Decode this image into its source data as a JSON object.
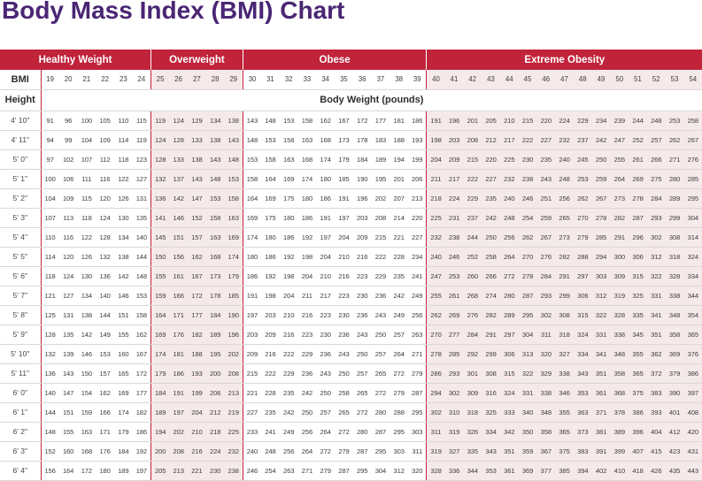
{
  "title": "Body Mass Index (BMI) Chart",
  "colors": {
    "title": "#4a2674",
    "category_header": "#c0233a",
    "shaded": "#f6e9ea"
  },
  "categories": [
    {
      "label": "Healthy Weight",
      "span": 6
    },
    {
      "label": "Overweight",
      "span": 5
    },
    {
      "label": "Obese",
      "span": 10
    },
    {
      "label": "Extreme Obesity",
      "span": 15
    }
  ],
  "bmi_label": "BMI",
  "height_label": "Height",
  "body_weight_label": "Body Weight (pounds)",
  "bmi_values": [
    "19",
    "20",
    "21",
    "22",
    "23",
    "24",
    "25",
    "26",
    "27",
    "28",
    "29",
    "30",
    "31",
    "32",
    "33",
    "34",
    "35",
    "36",
    "37",
    "38",
    "39",
    "40",
    "41",
    "42",
    "43",
    "44",
    "45",
    "46",
    "47",
    "48",
    "49",
    "50",
    "51",
    "52",
    "53",
    "54"
  ],
  "rows": [
    {
      "height": "4' 10\"",
      "weights": [
        "91",
        "96",
        "100",
        "105",
        "110",
        "115",
        "119",
        "124",
        "129",
        "134",
        "138",
        "143",
        "148",
        "153",
        "158",
        "162",
        "167",
        "172",
        "177",
        "181",
        "186",
        "191",
        "196",
        "201",
        "205",
        "210",
        "215",
        "220",
        "224",
        "229",
        "234",
        "239",
        "244",
        "248",
        "253",
        "258"
      ]
    },
    {
      "height": "4' 11\"",
      "weights": [
        "94",
        "99",
        "104",
        "109",
        "114",
        "119",
        "124",
        "128",
        "133",
        "138",
        "143",
        "148",
        "153",
        "158",
        "163",
        "168",
        "173",
        "178",
        "183",
        "188",
        "193",
        "198",
        "203",
        "208",
        "212",
        "217",
        "222",
        "227",
        "232",
        "237",
        "242",
        "247",
        "252",
        "257",
        "262",
        "267"
      ]
    },
    {
      "height": "5' 0\"",
      "weights": [
        "97",
        "102",
        "107",
        "112",
        "118",
        "123",
        "128",
        "133",
        "138",
        "143",
        "148",
        "153",
        "158",
        "163",
        "168",
        "174",
        "179",
        "184",
        "189",
        "194",
        "199",
        "204",
        "209",
        "215",
        "220",
        "225",
        "230",
        "235",
        "240",
        "245",
        "250",
        "255",
        "261",
        "266",
        "271",
        "276"
      ]
    },
    {
      "height": "5' 1\"",
      "weights": [
        "100",
        "106",
        "111",
        "116",
        "122",
        "127",
        "132",
        "137",
        "143",
        "148",
        "153",
        "158",
        "164",
        "169",
        "174",
        "180",
        "185",
        "190",
        "195",
        "201",
        "206",
        "211",
        "217",
        "222",
        "227",
        "232",
        "238",
        "243",
        "248",
        "253",
        "259",
        "264",
        "269",
        "275",
        "280",
        "285"
      ]
    },
    {
      "height": "5' 2\"",
      "weights": [
        "104",
        "109",
        "115",
        "120",
        "126",
        "131",
        "136",
        "142",
        "147",
        "153",
        "158",
        "164",
        "169",
        "175",
        "180",
        "186",
        "191",
        "196",
        "202",
        "207",
        "213",
        "218",
        "224",
        "229",
        "235",
        "240",
        "246",
        "251",
        "256",
        "262",
        "267",
        "273",
        "278",
        "284",
        "289",
        "295"
      ]
    },
    {
      "height": "5' 3\"",
      "weights": [
        "107",
        "113",
        "118",
        "124",
        "130",
        "135",
        "141",
        "146",
        "152",
        "158",
        "163",
        "169",
        "175",
        "180",
        "186",
        "191",
        "197",
        "203",
        "208",
        "214",
        "220",
        "225",
        "231",
        "237",
        "242",
        "248",
        "254",
        "259",
        "265",
        "270",
        "278",
        "282",
        "287",
        "293",
        "299",
        "304"
      ]
    },
    {
      "height": "5' 4\"",
      "weights": [
        "110",
        "116",
        "122",
        "128",
        "134",
        "140",
        "145",
        "151",
        "157",
        "163",
        "169",
        "174",
        "180",
        "186",
        "192",
        "197",
        "204",
        "209",
        "215",
        "221",
        "227",
        "232",
        "238",
        "244",
        "250",
        "256",
        "262",
        "267",
        "273",
        "279",
        "285",
        "291",
        "296",
        "302",
        "308",
        "314"
      ]
    },
    {
      "height": "5' 5\"",
      "weights": [
        "114",
        "120",
        "126",
        "132",
        "138",
        "144",
        "150",
        "156",
        "162",
        "168",
        "174",
        "180",
        "186",
        "192",
        "198",
        "204",
        "210",
        "216",
        "222",
        "228",
        "234",
        "240",
        "246",
        "252",
        "258",
        "264",
        "270",
        "276",
        "282",
        "288",
        "294",
        "300",
        "306",
        "312",
        "318",
        "324"
      ]
    },
    {
      "height": "5' 6\"",
      "weights": [
        "118",
        "124",
        "130",
        "136",
        "142",
        "148",
        "155",
        "161",
        "167",
        "173",
        "179",
        "186",
        "192",
        "198",
        "204",
        "210",
        "216",
        "223",
        "229",
        "235",
        "241",
        "247",
        "253",
        "260",
        "266",
        "272",
        "278",
        "284",
        "291",
        "297",
        "303",
        "309",
        "315",
        "322",
        "328",
        "334"
      ]
    },
    {
      "height": "5' 7\"",
      "weights": [
        "121",
        "127",
        "134",
        "140",
        "146",
        "153",
        "159",
        "166",
        "172",
        "178",
        "185",
        "191",
        "198",
        "204",
        "211",
        "217",
        "223",
        "230",
        "236",
        "242",
        "249",
        "255",
        "261",
        "268",
        "274",
        "280",
        "287",
        "293",
        "299",
        "306",
        "312",
        "319",
        "325",
        "331",
        "338",
        "344"
      ]
    },
    {
      "height": "5' 8\"",
      "weights": [
        "125",
        "131",
        "138",
        "144",
        "151",
        "158",
        "164",
        "171",
        "177",
        "184",
        "190",
        "197",
        "203",
        "210",
        "216",
        "223",
        "230",
        "236",
        "243",
        "249",
        "256",
        "262",
        "269",
        "276",
        "282",
        "289",
        "295",
        "302",
        "308",
        "315",
        "322",
        "328",
        "335",
        "341",
        "348",
        "354"
      ]
    },
    {
      "height": "5' 9\"",
      "weights": [
        "128",
        "135",
        "142",
        "149",
        "155",
        "162",
        "169",
        "176",
        "182",
        "189",
        "196",
        "203",
        "209",
        "216",
        "223",
        "230",
        "236",
        "243",
        "250",
        "257",
        "263",
        "270",
        "277",
        "284",
        "291",
        "297",
        "304",
        "311",
        "318",
        "324",
        "331",
        "338",
        "345",
        "351",
        "358",
        "365"
      ]
    },
    {
      "height": "5' 10\"",
      "weights": [
        "132",
        "139",
        "146",
        "153",
        "160",
        "167",
        "174",
        "181",
        "188",
        "195",
        "202",
        "209",
        "216",
        "222",
        "229",
        "236",
        "243",
        "250",
        "257",
        "264",
        "271",
        "278",
        "285",
        "292",
        "299",
        "306",
        "313",
        "320",
        "327",
        "334",
        "341",
        "348",
        "355",
        "362",
        "369",
        "376"
      ]
    },
    {
      "height": "5' 11\"",
      "weights": [
        "136",
        "143",
        "150",
        "157",
        "165",
        "172",
        "179",
        "186",
        "193",
        "200",
        "208",
        "215",
        "222",
        "229",
        "236",
        "243",
        "250",
        "257",
        "265",
        "272",
        "279",
        "286",
        "293",
        "301",
        "308",
        "315",
        "322",
        "329",
        "338",
        "343",
        "351",
        "358",
        "365",
        "372",
        "379",
        "386"
      ]
    },
    {
      "height": "6' 0\"",
      "weights": [
        "140",
        "147",
        "154",
        "162",
        "169",
        "177",
        "184",
        "191",
        "199",
        "206",
        "213",
        "221",
        "228",
        "235",
        "242",
        "250",
        "258",
        "265",
        "272",
        "279",
        "287",
        "294",
        "302",
        "309",
        "316",
        "324",
        "331",
        "338",
        "346",
        "353",
        "361",
        "368",
        "375",
        "383",
        "390",
        "397"
      ]
    },
    {
      "height": "6' 1\"",
      "weights": [
        "144",
        "151",
        "159",
        "166",
        "174",
        "182",
        "189",
        "197",
        "204",
        "212",
        "219",
        "227",
        "235",
        "242",
        "250",
        "257",
        "265",
        "272",
        "280",
        "288",
        "295",
        "302",
        "310",
        "318",
        "325",
        "333",
        "340",
        "348",
        "355",
        "363",
        "371",
        "378",
        "386",
        "393",
        "401",
        "408"
      ]
    },
    {
      "height": "6' 2\"",
      "weights": [
        "148",
        "155",
        "163",
        "171",
        "179",
        "186",
        "194",
        "202",
        "210",
        "218",
        "225",
        "233",
        "241",
        "249",
        "256",
        "264",
        "272",
        "280",
        "287",
        "295",
        "303",
        "311",
        "319",
        "326",
        "334",
        "342",
        "350",
        "358",
        "365",
        "373",
        "381",
        "389",
        "396",
        "404",
        "412",
        "420"
      ]
    },
    {
      "height": "6' 3\"",
      "weights": [
        "152",
        "160",
        "168",
        "176",
        "184",
        "192",
        "200",
        "208",
        "216",
        "224",
        "232",
        "240",
        "248",
        "256",
        "264",
        "272",
        "279",
        "287",
        "295",
        "303",
        "311",
        "319",
        "327",
        "335",
        "343",
        "351",
        "359",
        "367",
        "375",
        "383",
        "391",
        "399",
        "407",
        "415",
        "423",
        "431"
      ]
    },
    {
      "height": "6' 4\"",
      "weights": [
        "156",
        "164",
        "172",
        "180",
        "189",
        "197",
        "205",
        "213",
        "221",
        "230",
        "238",
        "246",
        "254",
        "263",
        "271",
        "279",
        "287",
        "295",
        "304",
        "312",
        "320",
        "328",
        "336",
        "344",
        "353",
        "361",
        "369",
        "377",
        "385",
        "394",
        "402",
        "410",
        "418",
        "426",
        "435",
        "443"
      ]
    }
  ]
}
